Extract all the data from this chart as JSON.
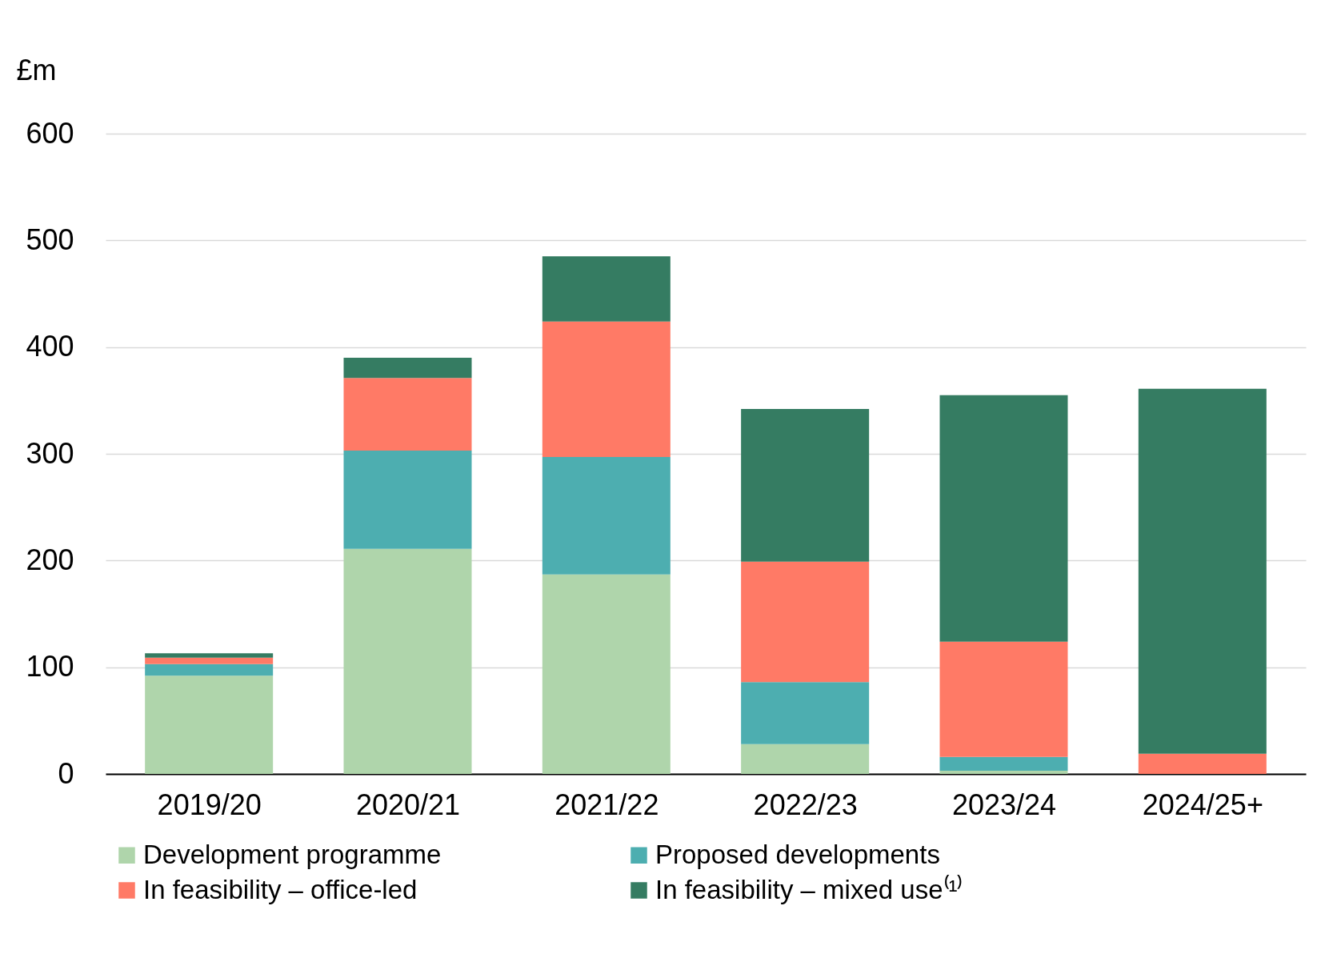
{
  "chart_data": {
    "type": "bar",
    "stacked": true,
    "ylabel": "£m",
    "categories": [
      "2019/20",
      "2020/21",
      "2021/22",
      "2022/23",
      "2023/24",
      "2024/25+"
    ],
    "series": [
      {
        "name": "Development programme",
        "color": "#afd5ab",
        "values": [
          92,
          211,
          187,
          28,
          3,
          0
        ]
      },
      {
        "name": "Proposed developments",
        "color": "#4daeb0",
        "values": [
          11,
          92,
          110,
          58,
          13,
          0
        ]
      },
      {
        "name": "In feasibility – office-led",
        "color": "#ff7a66",
        "values": [
          6,
          68,
          127,
          113,
          108,
          19
        ]
      },
      {
        "name": "In feasibility – mixed use⁽¹⁾",
        "color": "#357c62",
        "values": [
          4,
          19,
          61,
          143,
          231,
          342
        ]
      }
    ],
    "ylim": [
      0,
      600
    ],
    "yticks": [
      0,
      100,
      200,
      300,
      400,
      500,
      600
    ],
    "grid": "y",
    "legend": "bottom"
  }
}
